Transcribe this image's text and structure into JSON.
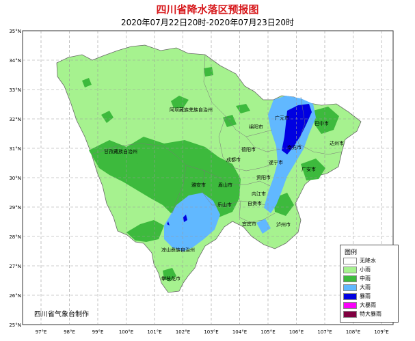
{
  "title": "四川省降水落区预报图",
  "subtitle": "2020年07月22日20时-2020年07月23日20时",
  "maker": "四川省气象台制作",
  "axes": {
    "lat_labels": [
      "35°N",
      "34°N",
      "33°N",
      "32°N",
      "31°N",
      "30°N",
      "29°N",
      "28°N",
      "27°N",
      "26°N",
      "25°N"
    ],
    "lon_labels": [
      "97°E",
      "98°E",
      "99°E",
      "100°E",
      "101°E",
      "102°E",
      "103°E",
      "104°E",
      "105°E",
      "106°E",
      "107°E",
      "108°E",
      "109°E"
    ]
  },
  "cities": [
    {
      "name": "阿坝藏族羌族自治州"
    },
    {
      "name": "甘孜藏族自治州"
    },
    {
      "name": "凉山彝族自治州"
    },
    {
      "name": "广元市"
    },
    {
      "name": "巴中市"
    },
    {
      "name": "达州市"
    },
    {
      "name": "绵阳市"
    },
    {
      "name": "南充市"
    },
    {
      "name": "德阳市"
    },
    {
      "name": "成都市"
    },
    {
      "name": "遂宁市"
    },
    {
      "name": "广安市"
    },
    {
      "name": "资阳市"
    },
    {
      "name": "雅安市"
    },
    {
      "name": "眉山市"
    },
    {
      "name": "内江市"
    },
    {
      "name": "乐山市"
    },
    {
      "name": "自贡市"
    },
    {
      "name": "宜宾市"
    },
    {
      "name": "泸州市"
    },
    {
      "name": "攀枝花市"
    }
  ],
  "legend": {
    "title": "图例",
    "items": [
      {
        "label": "无降水",
        "color": "#ffffff"
      },
      {
        "label": "小雨",
        "color": "#a6f28f"
      },
      {
        "label": "中雨",
        "color": "#3dba3d"
      },
      {
        "label": "大雨",
        "color": "#61b8ff"
      },
      {
        "label": "暴雨",
        "color": "#0000e1"
      },
      {
        "label": "大暴雨",
        "color": "#fa00fa"
      },
      {
        "label": "特大暴雨",
        "color": "#800040"
      }
    ]
  }
}
